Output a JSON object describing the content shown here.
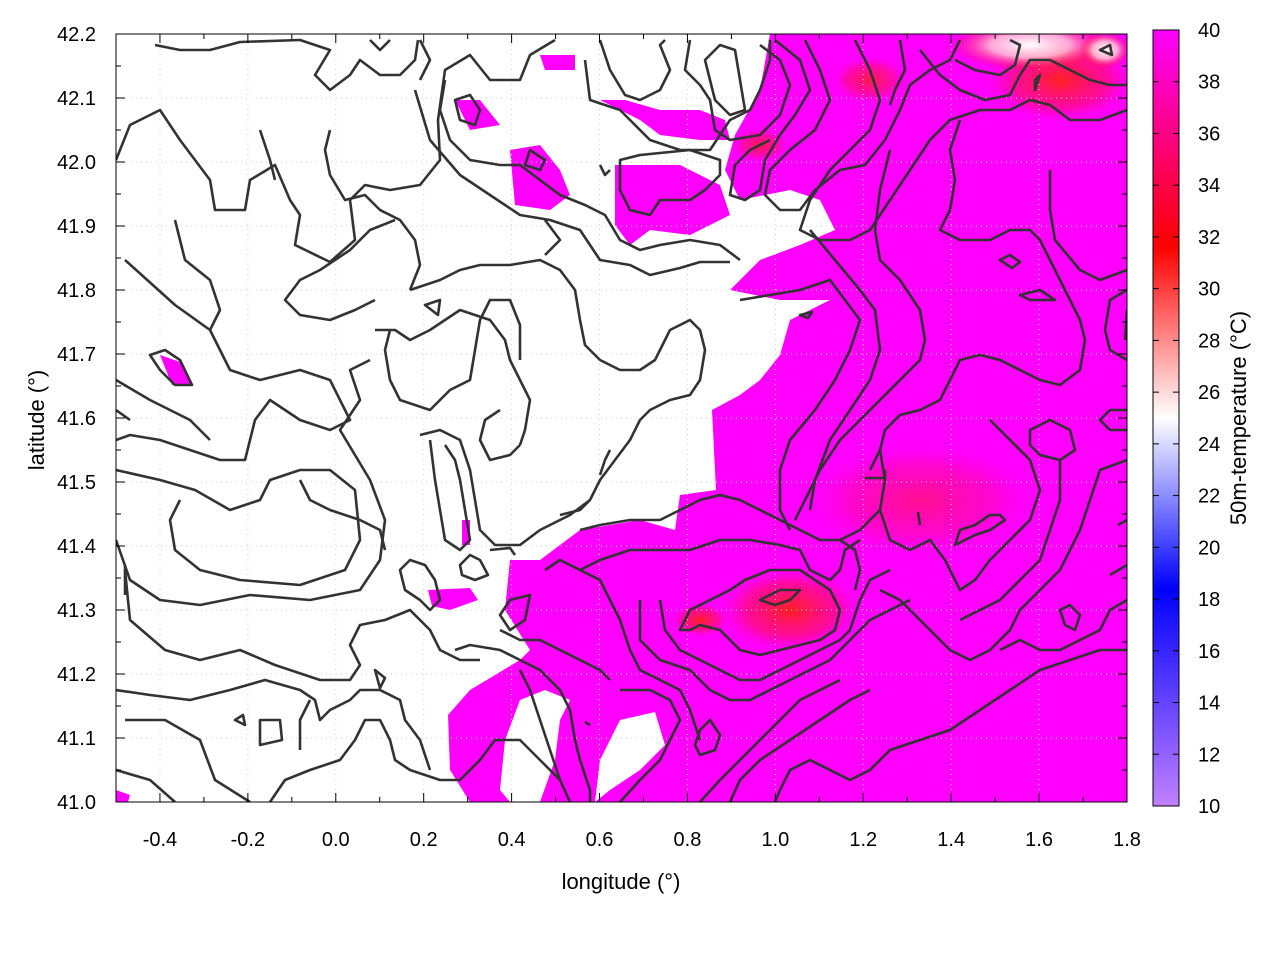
{
  "chart_data": {
    "type": "heatmap",
    "title": "",
    "xlabel": "longitude (°)",
    "ylabel": "latitude (°)",
    "colorbar_label": "50m-temperature (°C)",
    "xlim": [
      -0.5,
      1.8
    ],
    "ylim": [
      41.0,
      42.2
    ],
    "x_ticks": [
      "-0.4",
      "-0.2",
      "0.0",
      "0.2",
      "0.4",
      "0.6",
      "0.8",
      "1.0",
      "1.2",
      "1.4",
      "1.6",
      "1.8"
    ],
    "y_ticks": [
      "41.0",
      "41.1",
      "41.2",
      "41.3",
      "41.4",
      "41.5",
      "41.6",
      "41.7",
      "41.8",
      "41.9",
      "42.0",
      "42.1",
      "42.2"
    ],
    "colorbar_range": [
      10,
      40
    ],
    "colorbar_ticks": [
      "10",
      "12",
      "14",
      "16",
      "18",
      "20",
      "22",
      "24",
      "26",
      "28",
      "30",
      "32",
      "34",
      "36",
      "38",
      "40"
    ],
    "grid": true,
    "colors": {
      "low": "#c080ff",
      "mid_low": "#0000ff",
      "mid": "#ffffff",
      "mid_high": "#ff0000",
      "high": "#ff00ff",
      "contour": "#333333"
    },
    "hot_spots": [
      {
        "lon": 1.0,
        "lat": 41.3,
        "temp": 34
      },
      {
        "lon": 0.85,
        "lat": 41.28,
        "temp": 34
      },
      {
        "lon": 1.3,
        "lat": 41.45,
        "temp": 36
      },
      {
        "lon": 1.45,
        "lat": 41.45,
        "temp": 36
      },
      {
        "lon": 1.22,
        "lat": 41.5,
        "temp": 36
      },
      {
        "lon": 1.55,
        "lat": 42.15,
        "temp": 30
      },
      {
        "lon": 1.7,
        "lat": 42.1,
        "temp": 34
      },
      {
        "lon": 1.25,
        "lat": 42.1,
        "temp": 34
      },
      {
        "lon": 0.97,
        "lat": 42.02,
        "temp": 33
      },
      {
        "lon": 1.6,
        "lat": 41.8,
        "temp": 36
      }
    ]
  }
}
